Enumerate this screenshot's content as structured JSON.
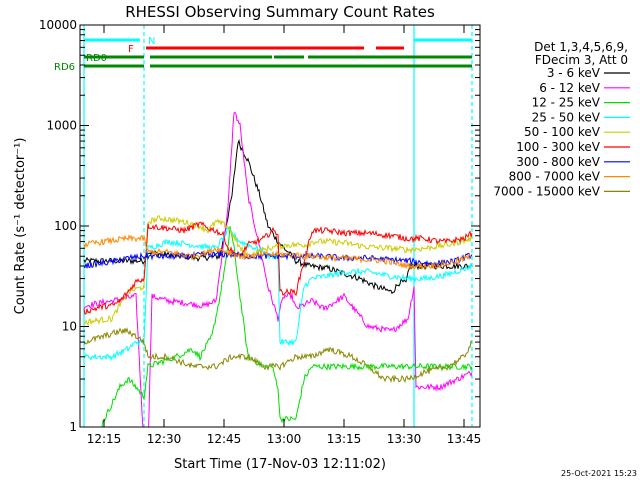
{
  "chart_data": {
    "type": "line",
    "title": "RHESSI Observing Summary Count Rates",
    "xlabel": "Start Time (17-Nov-03 12:11:02)",
    "ylabel": "Count Rate (s⁻¹ detector⁻¹)",
    "yscale": "log",
    "ylim": [
      1,
      10000
    ],
    "xlim_minutes_after_start": [
      -2,
      98
    ],
    "x_unit": "minutes after 12:11:02",
    "xticks": [
      {
        "value": 4,
        "label": "12:15"
      },
      {
        "value": 19,
        "label": "12:30"
      },
      {
        "value": 34,
        "label": "12:45"
      },
      {
        "value": 49,
        "label": "13:00"
      },
      {
        "value": 64,
        "label": "13:15"
      },
      {
        "value": 79,
        "label": "13:30"
      },
      {
        "value": 94,
        "label": "13:45"
      }
    ],
    "yticks": [
      {
        "value": 1,
        "label": "1"
      },
      {
        "value": 10,
        "label": "10"
      },
      {
        "value": 100,
        "label": "100"
      },
      {
        "value": 1000,
        "label": "1000"
      },
      {
        "value": 10000,
        "label": "10000"
      }
    ],
    "legend_header": [
      "Det 1,3,4,5,6,9,",
      "FDecim 3, Att 0"
    ],
    "legend_position": "right",
    "series": [
      {
        "name": "3 - 6 keV",
        "color": "#000000",
        "x": [
          -1,
          14,
          15,
          19,
          28,
          33,
          36,
          37.5,
          40,
          43,
          45,
          47.5,
          52,
          55,
          60,
          68,
          72,
          76,
          78,
          79.5,
          80.5,
          96
        ],
        "y": [
          45,
          45,
          55,
          52,
          48,
          50,
          200,
          700,
          450,
          200,
          100,
          70,
          45,
          40,
          38,
          30,
          25,
          22,
          28,
          27,
          40,
          40
        ]
      },
      {
        "name": "6 - 12 keV",
        "color": "#ff00ff",
        "x": [
          -1,
          6,
          12,
          14,
          15,
          16,
          20,
          25,
          29,
          32,
          35,
          36.5,
          38,
          40,
          43,
          45,
          47.5,
          48,
          49,
          51,
          52,
          56,
          59,
          64,
          70,
          76,
          80,
          81.5,
          82,
          86,
          88,
          96
        ],
        "y": [
          16,
          18,
          20,
          0.6,
          0.6,
          20,
          18,
          17,
          16,
          18,
          150,
          1400,
          1000,
          200,
          60,
          25,
          12,
          15,
          20,
          20,
          15,
          18,
          15,
          20,
          10,
          9,
          12,
          25,
          2.5,
          2.5,
          2.5,
          3.5
        ]
      },
      {
        "name": "12 - 25 keV",
        "color": "#00dd00",
        "x": [
          -1,
          2,
          8,
          10,
          12,
          14,
          15,
          22,
          26,
          28,
          31,
          33,
          35,
          35.5,
          36.5,
          38,
          40,
          44,
          46,
          47.5,
          48,
          50,
          52,
          54,
          56,
          96
        ],
        "y": [
          0.8,
          0.8,
          2.5,
          3,
          2.5,
          2,
          4,
          5,
          6,
          5,
          8,
          20,
          60,
          100,
          60,
          20,
          5,
          4,
          4,
          2.5,
          1.2,
          1.2,
          1.2,
          3,
          4,
          4
        ]
      },
      {
        "name": "25 - 50 keV",
        "color": "#00ffff",
        "x": [
          -1,
          2,
          6,
          10,
          12,
          14,
          15,
          20,
          26,
          32,
          35,
          36,
          38,
          40,
          44,
          45,
          47.5,
          48,
          52,
          54,
          56,
          60,
          65,
          70,
          75,
          80,
          85,
          90,
          96
        ],
        "y": [
          5,
          5,
          5,
          6,
          7,
          7,
          60,
          70,
          65,
          60,
          90,
          85,
          70,
          65,
          55,
          50,
          50,
          7,
          7,
          25,
          30,
          32,
          35,
          35,
          32,
          30,
          30,
          33,
          40
        ]
      },
      {
        "name": "50 - 100 keV",
        "color": "#cccc00",
        "x": [
          -1,
          6,
          10,
          14,
          15,
          18,
          24,
          28,
          30,
          32,
          35,
          38,
          40,
          45,
          50,
          55,
          56,
          60,
          64,
          70,
          76,
          80,
          84,
          90,
          96
        ],
        "y": [
          11,
          12,
          22,
          25,
          110,
          120,
          110,
          100,
          90,
          110,
          100,
          60,
          50,
          60,
          65,
          65,
          70,
          70,
          68,
          62,
          60,
          58,
          60,
          65,
          75
        ]
      },
      {
        "name": "100 - 300 keV",
        "color": "#ff0000",
        "x": [
          -1,
          4,
          6,
          8,
          10,
          12,
          14,
          15,
          20,
          24,
          28,
          30,
          32,
          34,
          35,
          38,
          40,
          44,
          46,
          47.5,
          48,
          52,
          56,
          60,
          64,
          70,
          76,
          80,
          84,
          88,
          90,
          94,
          96
        ],
        "y": [
          14,
          16,
          16,
          18,
          22,
          28,
          30,
          100,
          95,
          90,
          105,
          95,
          90,
          80,
          60,
          50,
          65,
          75,
          90,
          85,
          22,
          22,
          90,
          90,
          85,
          85,
          80,
          75,
          75,
          70,
          70,
          75,
          85
        ]
      },
      {
        "name": "300 - 800 keV",
        "color": "#0000ff",
        "x": [
          -1,
          6,
          10,
          14,
          18,
          24,
          30,
          36,
          40,
          46,
          52,
          58,
          64,
          70,
          76,
          80,
          86,
          92,
          96
        ],
        "y": [
          40,
          44,
          48,
          50,
          50,
          50,
          52,
          52,
          50,
          50,
          50,
          50,
          48,
          48,
          46,
          45,
          42,
          45,
          52
        ]
      },
      {
        "name": "800 - 7000 keV",
        "color": "#ff8800",
        "x": [
          -1,
          4,
          10,
          14,
          15,
          20,
          26,
          30,
          32,
          35,
          38,
          40,
          45,
          50,
          56,
          62,
          68,
          74,
          80,
          85,
          90,
          96
        ],
        "y": [
          65,
          70,
          75,
          75,
          55,
          55,
          50,
          55,
          60,
          55,
          50,
          50,
          52,
          52,
          50,
          48,
          47,
          45,
          40,
          40,
          42,
          50
        ]
      },
      {
        "name": "7000 - 15000 keV",
        "color": "#888800",
        "x": [
          -1,
          4,
          8,
          10,
          12,
          14,
          15,
          20,
          26,
          32,
          36,
          40,
          44,
          48,
          52,
          56,
          60,
          66,
          70,
          74,
          80,
          84,
          90,
          94,
          96
        ],
        "y": [
          7,
          8,
          9,
          9,
          8,
          7,
          5,
          5,
          4,
          4,
          5,
          5,
          4,
          4,
          5,
          5,
          6,
          5,
          4,
          3,
          3,
          3.5,
          4,
          5,
          7
        ]
      }
    ],
    "annotations": {
      "state_bars": [
        {
          "label": "N",
          "color": "#00ffff",
          "segments": [
            [
              -1,
              13
            ],
            [
              81.5,
              96
            ]
          ]
        },
        {
          "label": "F",
          "color": "#ff0000",
          "segments": [
            [
              14.5,
              69
            ],
            [
              72,
              79
            ]
          ]
        },
        {
          "label": "RD0",
          "color": "#008800",
          "segments": [
            [
              -1,
              14
            ],
            [
              15.5,
              46
            ],
            [
              46.5,
              54
            ],
            [
              55,
              96
            ]
          ]
        },
        {
          "label": "RD6",
          "color": "#008800",
          "segments": [
            [
              -1,
              14
            ],
            [
              15.5,
              96
            ]
          ]
        }
      ],
      "vertical_markers": [
        {
          "x": -1,
          "color": "#00ffff",
          "style": "solid"
        },
        {
          "x": 14,
          "color": "#00ffff",
          "style": "dashed"
        },
        {
          "x": 81.5,
          "color": "#00ffff",
          "style": "solid"
        },
        {
          "x": 96,
          "color": "#00ffff",
          "style": "dashed"
        }
      ]
    },
    "footer_timestamp": "25-Oct-2021 15:23"
  }
}
